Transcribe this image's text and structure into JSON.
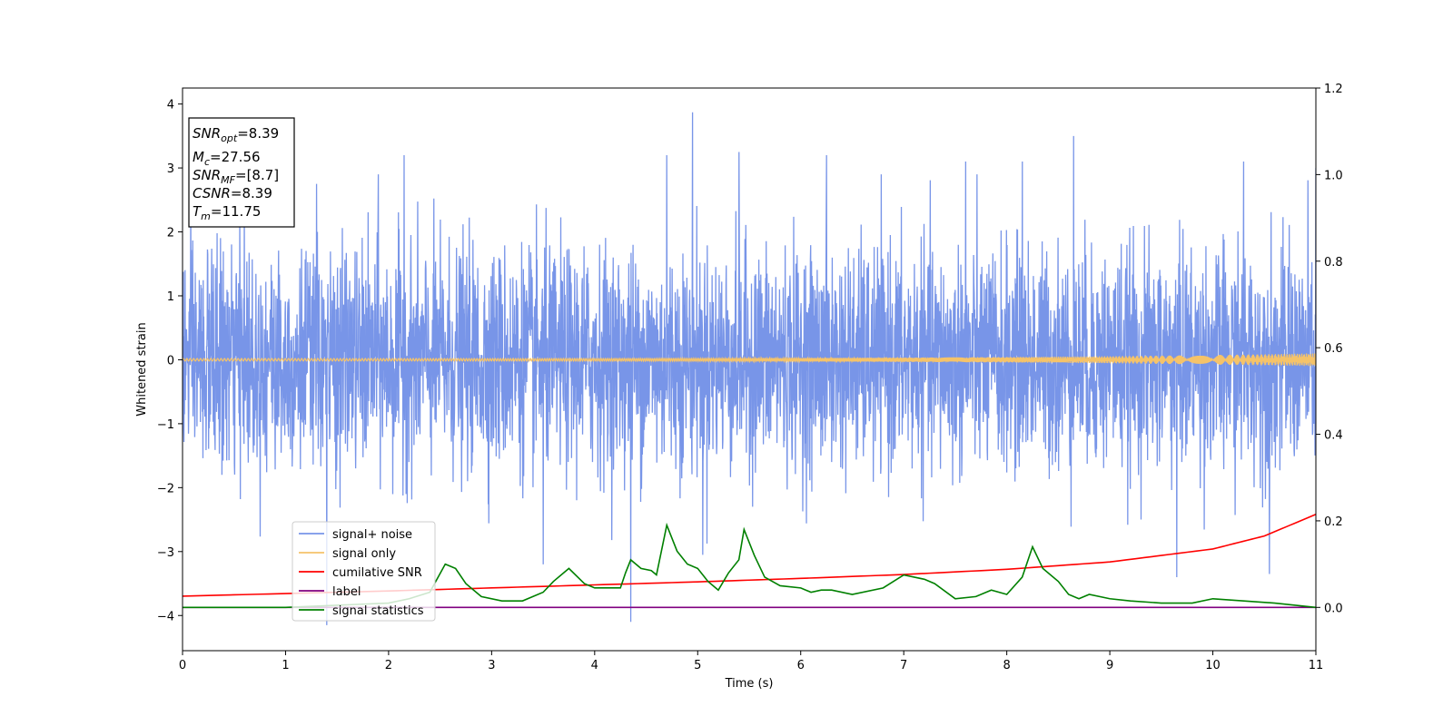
{
  "chart_data": {
    "type": "line",
    "xlabel": "Time (s)",
    "ylabel_left": "Whitened strain",
    "ylabel_right": "",
    "xlim": [
      0,
      11
    ],
    "ylim_left": [
      -4.55,
      4.25
    ],
    "ylim_right": [
      -0.1,
      1.2
    ],
    "x_ticks": [
      "0",
      "1",
      "2",
      "3",
      "4",
      "5",
      "6",
      "7",
      "8",
      "9",
      "10",
      "11"
    ],
    "y_left_ticks": [
      "4",
      "3",
      "2",
      "1",
      "0",
      "−1",
      "−2",
      "−3",
      "−4"
    ],
    "y_right_ticks": [
      "1.2",
      "1.0",
      "0.8",
      "0.6",
      "0.4",
      "0.2",
      "0.0"
    ],
    "grid": false,
    "legend_position": "lower-left",
    "annotation": {
      "snr_opt": "=8.39",
      "mc": "=27.56",
      "snr_mf": "=[8.7]",
      "csnr": "=8.39",
      "tm": "=11.75"
    },
    "series": [
      {
        "name": "signal+ noise",
        "axis": "left",
        "color": "#7895e8",
        "kind": "noise",
        "sigma": 0.85,
        "spikes": [
          [
            0.6,
            2.55
          ],
          [
            1.3,
            2.75
          ],
          [
            1.4,
            -4.15
          ],
          [
            1.9,
            2.9
          ],
          [
            2.15,
            3.2
          ],
          [
            3.5,
            -3.2
          ],
          [
            4.35,
            -4.1
          ],
          [
            4.7,
            3.2
          ],
          [
            4.95,
            3.87
          ],
          [
            5.05,
            -3.05
          ],
          [
            5.4,
            3.25
          ],
          [
            6.25,
            3.2
          ],
          [
            7.6,
            3.1
          ],
          [
            8.15,
            3.1
          ],
          [
            8.65,
            3.5
          ],
          [
            9.65,
            -3.4
          ],
          [
            10.3,
            3.1
          ],
          [
            10.55,
            -3.35
          ],
          [
            11.0,
            3.0
          ]
        ]
      },
      {
        "name": "signal only",
        "axis": "left",
        "color": "#f5c36a",
        "kind": "chirp",
        "amp_start": 0.02,
        "amp_end": 0.1
      },
      {
        "name": "cumilative SNR",
        "axis": "right",
        "color": "#ff0000",
        "x": [
          0,
          1,
          2,
          3,
          4,
          5,
          6,
          7,
          8,
          9,
          10,
          10.5,
          11
        ],
        "y": [
          0.026,
          0.032,
          0.038,
          0.045,
          0.052,
          0.059,
          0.067,
          0.076,
          0.088,
          0.105,
          0.135,
          0.165,
          0.215
        ]
      },
      {
        "name": "label",
        "axis": "right",
        "color": "#800080",
        "x": [
          0,
          11
        ],
        "y": [
          0.0,
          0.0
        ]
      },
      {
        "name": "signal statistics",
        "axis": "right",
        "color": "#008000",
        "x": [
          0,
          1.0,
          1.5,
          2.0,
          2.2,
          2.4,
          2.55,
          2.6,
          2.65,
          2.75,
          2.9,
          3.1,
          3.3,
          3.5,
          3.6,
          3.75,
          3.9,
          4.0,
          4.1,
          4.25,
          4.3,
          4.35,
          4.45,
          4.55,
          4.6,
          4.7,
          4.8,
          4.9,
          5.0,
          5.1,
          5.2,
          5.3,
          5.4,
          5.45,
          5.55,
          5.65,
          5.8,
          6.0,
          6.1,
          6.2,
          6.3,
          6.5,
          6.8,
          6.9,
          7.0,
          7.1,
          7.2,
          7.3,
          7.5,
          7.7,
          7.85,
          8.0,
          8.15,
          8.25,
          8.35,
          8.5,
          8.6,
          8.7,
          8.8,
          9.0,
          9.2,
          9.5,
          9.8,
          10.0,
          10.3,
          10.6,
          11.0
        ],
        "y": [
          0.0,
          0.0,
          0.005,
          0.01,
          0.02,
          0.035,
          0.1,
          0.095,
          0.09,
          0.055,
          0.025,
          0.015,
          0.015,
          0.035,
          0.06,
          0.09,
          0.055,
          0.045,
          0.045,
          0.045,
          0.08,
          0.11,
          0.09,
          0.085,
          0.075,
          0.19,
          0.13,
          0.1,
          0.09,
          0.06,
          0.04,
          0.08,
          0.11,
          0.18,
          0.12,
          0.07,
          0.05,
          0.045,
          0.035,
          0.04,
          0.04,
          0.03,
          0.045,
          0.06,
          0.075,
          0.07,
          0.065,
          0.055,
          0.02,
          0.025,
          0.04,
          0.03,
          0.07,
          0.14,
          0.09,
          0.06,
          0.03,
          0.02,
          0.03,
          0.02,
          0.015,
          0.01,
          0.01,
          0.02,
          0.015,
          0.01,
          0.0
        ]
      }
    ]
  }
}
